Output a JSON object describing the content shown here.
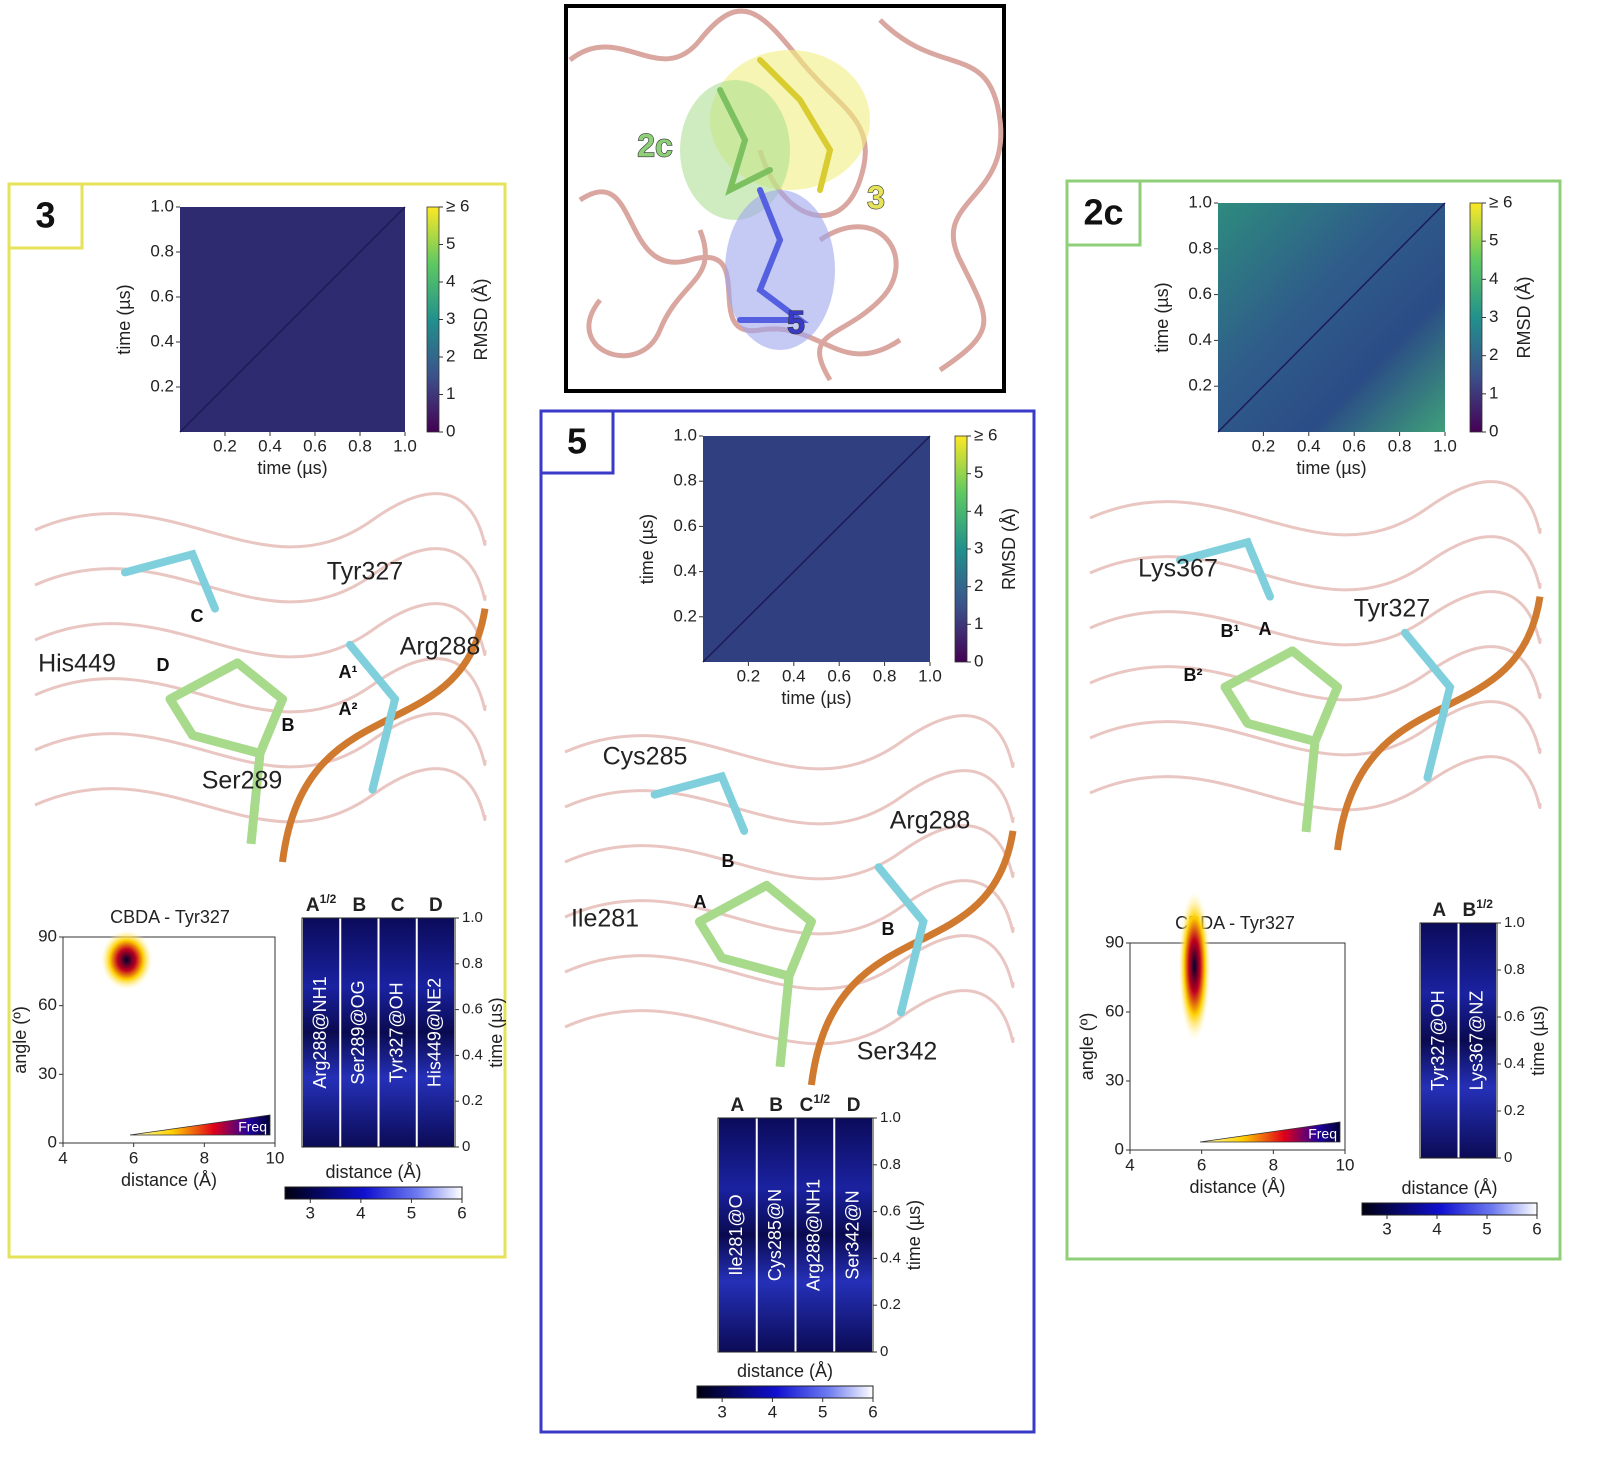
{
  "overview": {
    "labels": [
      "2c",
      "3",
      "5"
    ]
  },
  "panels": [
    {
      "label": "3",
      "rmsd": {
        "xlabel": "time (µs)",
        "ylabel": "time (µs)",
        "xlim": [
          0,
          1
        ],
        "ylim": [
          0,
          1
        ],
        "xticks": [
          0.2,
          0.4,
          0.6,
          0.8,
          {
            "value": 1,
            "label": "1.0"
          }
        ],
        "yticks": [
          0.2,
          0.4,
          0.6,
          0.8,
          {
            "value": 1,
            "label": "1.0"
          }
        ],
        "colorbar_label": "RMSD (Å)",
        "colorbar_lim": [
          0,
          6
        ],
        "colorbar_ticks": [
          0,
          1,
          2,
          3,
          4,
          5,
          {
            "value": 6,
            "label": "≥ 6"
          }
        ]
      },
      "structure": {
        "labels": [
          "Tyr327",
          "His449",
          "Arg288",
          "Ser289",
          "C",
          "D",
          "A¹",
          "A²",
          "B"
        ]
      },
      "histogram": {
        "title": "CBDA - Tyr327",
        "xlabel": "distance (Å)",
        "ylabel": "angle (º)",
        "xlim": [
          4,
          10
        ],
        "ylim": [
          0,
          90
        ],
        "xticks": [
          4,
          6,
          8,
          10
        ],
        "yticks": [
          0,
          30,
          60,
          90
        ],
        "legend": "Freq"
      },
      "contacts_map": {
        "headers": [
          {
            "text": "A",
            "sup": "1/2"
          },
          {
            "text": "B"
          },
          {
            "text": "C"
          },
          {
            "text": "D"
          }
        ],
        "columns": [
          "Arg288@NH1",
          "Ser289@OG",
          "Tyr327@OH",
          "His449@NE2"
        ],
        "time_label": "time (µs)",
        "time_lim": [
          0,
          1
        ],
        "time_ticks": [
          0,
          0.2,
          0.4,
          0.6,
          0.8,
          {
            "value": 1,
            "label": "1.0"
          }
        ],
        "colorbar_label": "distance (Å)",
        "colorbar_lim": [
          2.5,
          6
        ],
        "colorbar_ticks": [
          3,
          4,
          5,
          6
        ]
      }
    },
    {
      "label": "5",
      "rmsd": {
        "xlabel": "time (µs)",
        "ylabel": "time (µs)",
        "xlim": [
          0,
          1
        ],
        "ylim": [
          0,
          1
        ],
        "xticks": [
          0.2,
          0.4,
          0.6,
          0.8,
          {
            "value": 1,
            "label": "1.0"
          }
        ],
        "yticks": [
          0.2,
          0.4,
          0.6,
          0.8,
          {
            "value": 1,
            "label": "1.0"
          }
        ],
        "colorbar_label": "RMSD (Å)",
        "colorbar_lim": [
          0,
          6
        ],
        "colorbar_ticks": [
          0,
          1,
          2,
          3,
          4,
          5,
          {
            "value": 6,
            "label": "≥ 6"
          }
        ]
      },
      "structure": {
        "labels": [
          "Cys285",
          "Arg288",
          "Ile281",
          "Ser342",
          "A",
          "B",
          "B"
        ]
      },
      "contacts_map": {
        "headers": [
          {
            "text": "A"
          },
          {
            "text": "B"
          },
          {
            "text": "C",
            "sup": "1/2"
          },
          {
            "text": "D"
          }
        ],
        "columns": [
          "Ile281@O",
          "Cys285@N",
          "Arg288@NH1",
          "Ser342@N"
        ],
        "time_label": "time (µs)",
        "time_lim": [
          0,
          1
        ],
        "time_ticks": [
          0,
          0.2,
          0.4,
          0.6,
          0.8,
          {
            "value": 1,
            "label": "1.0"
          }
        ],
        "colorbar_label": "distance (Å)",
        "colorbar_lim": [
          2.5,
          6
        ],
        "colorbar_ticks": [
          3,
          4,
          5,
          6
        ]
      }
    },
    {
      "label": "2c",
      "rmsd": {
        "xlabel": "time (µs)",
        "ylabel": "time (µs)",
        "xlim": [
          0,
          1
        ],
        "ylim": [
          0,
          1
        ],
        "xticks": [
          0.2,
          0.4,
          0.6,
          0.8,
          {
            "value": 1,
            "label": "1.0"
          }
        ],
        "yticks": [
          0.2,
          0.4,
          0.6,
          0.8,
          {
            "value": 1,
            "label": "1.0"
          }
        ],
        "colorbar_label": "RMSD (Å)",
        "colorbar_lim": [
          0,
          6
        ],
        "colorbar_ticks": [
          0,
          1,
          2,
          3,
          4,
          5,
          {
            "value": 6,
            "label": "≥ 6"
          }
        ]
      },
      "structure": {
        "labels": [
          "Lys367",
          "Tyr327",
          "A",
          "B¹",
          "B²"
        ]
      },
      "histogram": {
        "title": "CBDA - Tyr327",
        "xlabel": "distance (Å)",
        "ylabel": "angle (º)",
        "xlim": [
          4,
          10
        ],
        "ylim": [
          0,
          90
        ],
        "xticks": [
          4,
          6,
          8,
          10
        ],
        "yticks": [
          0,
          30,
          60,
          90
        ],
        "legend": "Freq"
      },
      "contacts_map": {
        "headers": [
          {
            "text": "A"
          },
          {
            "text": "B",
            "sup": "1/2"
          }
        ],
        "columns": [
          "Tyr327@OH",
          "Lys367@NZ"
        ],
        "time_label": "time (µs)",
        "time_lim": [
          0,
          1
        ],
        "time_ticks": [
          0,
          0.2,
          0.4,
          0.6,
          0.8,
          {
            "value": 1,
            "label": "1.0"
          }
        ],
        "colorbar_label": "distance (Å)",
        "colorbar_lim": [
          2.5,
          6
        ],
        "colorbar_ticks": [
          3,
          4,
          5,
          6
        ]
      }
    }
  ]
}
